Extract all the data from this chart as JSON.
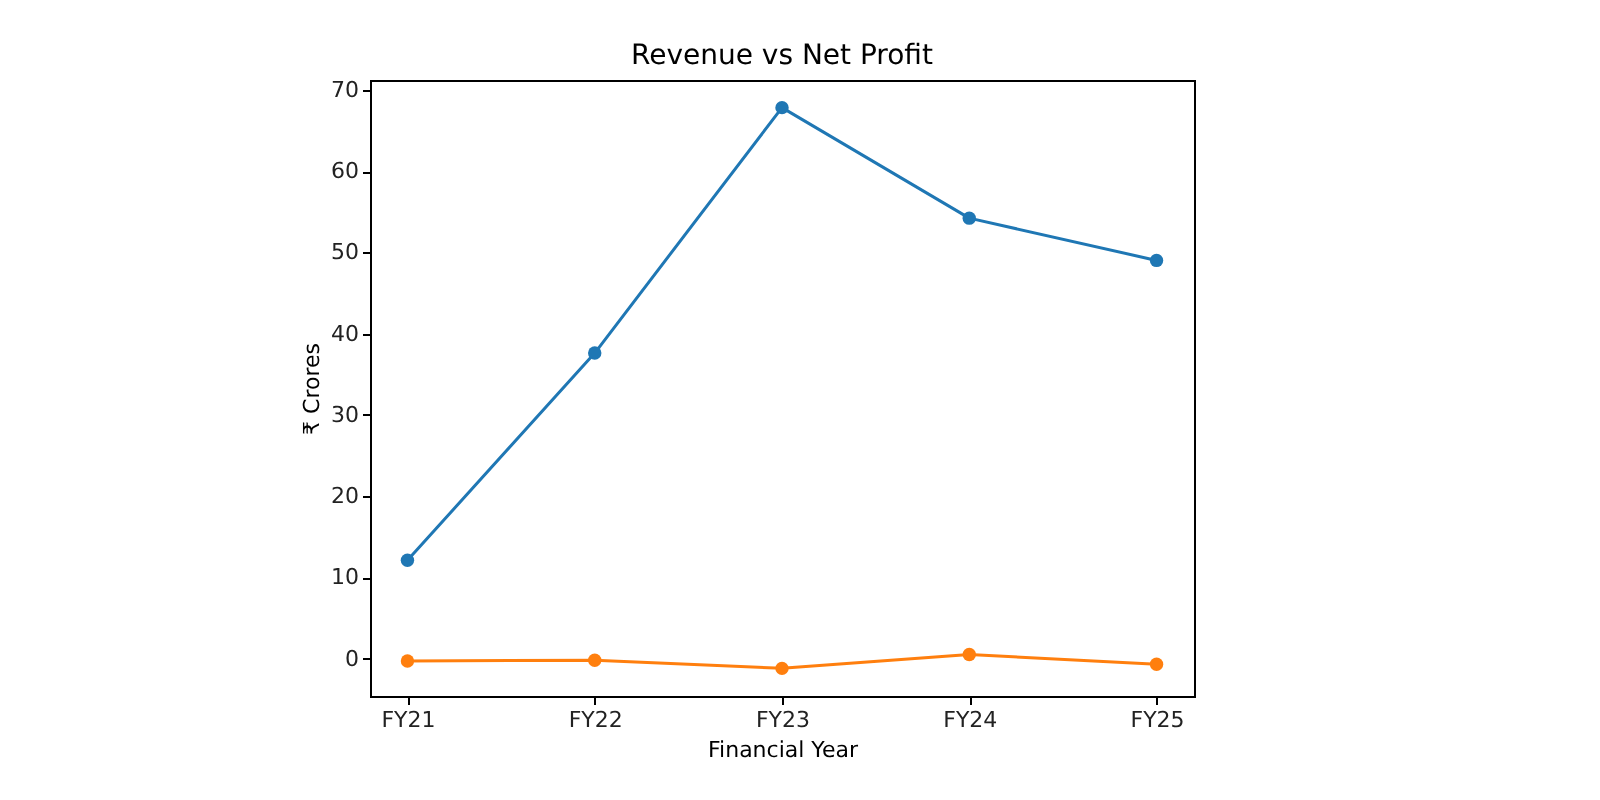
{
  "chart_data": {
    "type": "line",
    "title": "Revenue vs Net Profit",
    "xlabel": "Financial Year",
    "ylabel": "₹ Crores",
    "categories": [
      "FY21",
      "FY22",
      "FY23",
      "FY24",
      "FY25"
    ],
    "series": [
      {
        "color": "#1f77b4",
        "values": [
          12.1,
          37.6,
          67.8,
          54.2,
          49.0
        ]
      },
      {
        "color": "#ff7f0e",
        "values": [
          -0.3,
          -0.2,
          -1.2,
          0.5,
          -0.7
        ]
      }
    ],
    "ylim": [
      -4.6,
      71.2
    ],
    "yticks": [
      0,
      10,
      20,
      30,
      40,
      50,
      60,
      70
    ],
    "grid": false,
    "marker": "circle"
  }
}
